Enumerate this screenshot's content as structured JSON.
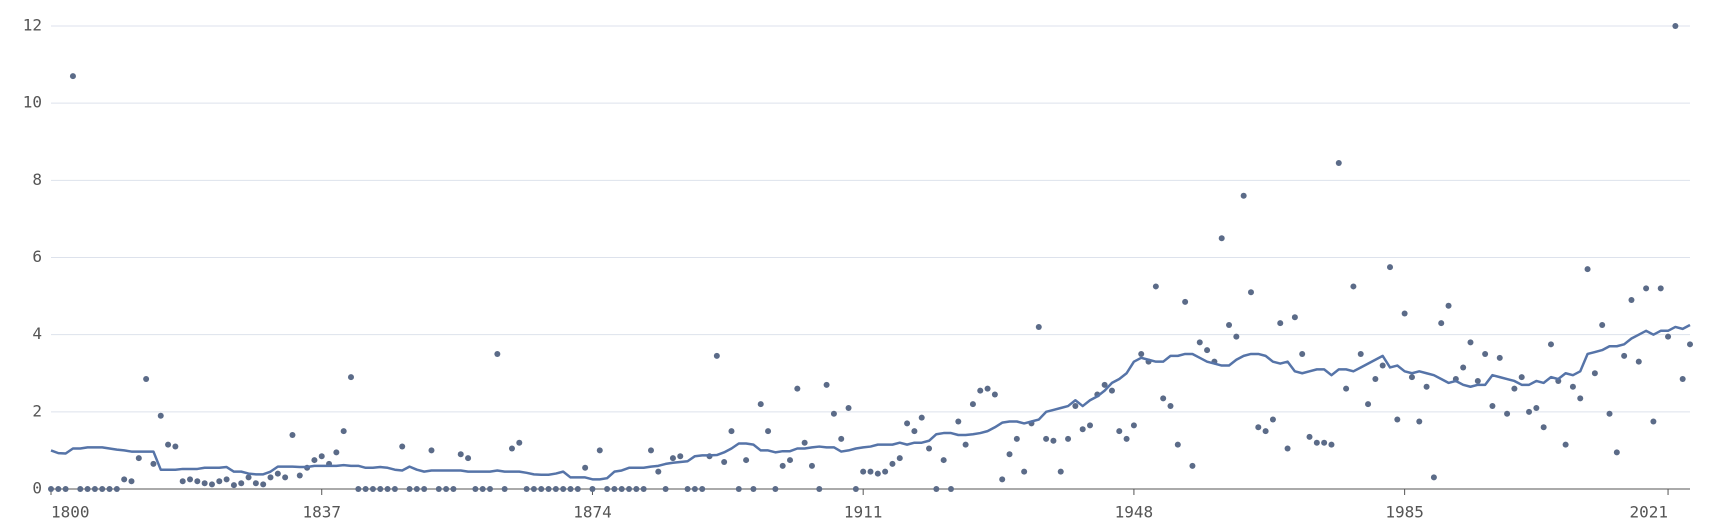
{
  "chart_data": {
    "type": "scatter",
    "x": [
      1800,
      1801,
      1802,
      1803,
      1804,
      1805,
      1806,
      1807,
      1808,
      1809,
      1810,
      1811,
      1812,
      1813,
      1814,
      1815,
      1816,
      1817,
      1818,
      1819,
      1820,
      1821,
      1822,
      1823,
      1824,
      1825,
      1826,
      1827,
      1828,
      1829,
      1830,
      1831,
      1832,
      1833,
      1834,
      1835,
      1836,
      1837,
      1838,
      1839,
      1840,
      1841,
      1842,
      1843,
      1844,
      1845,
      1846,
      1847,
      1848,
      1849,
      1850,
      1851,
      1852,
      1853,
      1854,
      1855,
      1856,
      1857,
      1858,
      1859,
      1860,
      1861,
      1862,
      1863,
      1864,
      1865,
      1866,
      1867,
      1868,
      1869,
      1870,
      1871,
      1872,
      1873,
      1874,
      1875,
      1876,
      1877,
      1878,
      1879,
      1880,
      1881,
      1882,
      1883,
      1884,
      1885,
      1886,
      1887,
      1888,
      1889,
      1890,
      1891,
      1892,
      1893,
      1894,
      1895,
      1896,
      1897,
      1898,
      1899,
      1900,
      1901,
      1902,
      1903,
      1904,
      1905,
      1906,
      1907,
      1908,
      1909,
      1910,
      1911,
      1912,
      1913,
      1914,
      1915,
      1916,
      1917,
      1918,
      1919,
      1920,
      1921,
      1922,
      1923,
      1924,
      1925,
      1926,
      1927,
      1928,
      1929,
      1930,
      1931,
      1932,
      1933,
      1934,
      1935,
      1936,
      1937,
      1938,
      1939,
      1940,
      1941,
      1942,
      1943,
      1944,
      1945,
      1946,
      1947,
      1948,
      1949,
      1950,
      1951,
      1952,
      1953,
      1954,
      1955,
      1956,
      1957,
      1958,
      1959,
      1960,
      1961,
      1962,
      1963,
      1964,
      1965,
      1966,
      1967,
      1968,
      1969,
      1970,
      1971,
      1972,
      1973,
      1974,
      1975,
      1976,
      1977,
      1978,
      1979,
      1980,
      1981,
      1982,
      1983,
      1984,
      1985,
      1986,
      1987,
      1988,
      1989,
      1990,
      1991,
      1992,
      1993,
      1994,
      1995,
      1996,
      1997,
      1998,
      1999,
      2000,
      2001,
      2002,
      2003,
      2004,
      2005,
      2006,
      2007,
      2008,
      2009,
      2010,
      2011,
      2012,
      2013,
      2014,
      2015,
      2016,
      2017,
      2018,
      2019,
      2020,
      2021,
      2022,
      2023,
      2024
    ],
    "series": [
      {
        "type": "scatter",
        "color": "#5b6b88",
        "values": [
          0,
          0,
          0,
          10.7,
          0,
          0,
          0,
          0,
          0,
          0,
          0.25,
          0.2,
          0.8,
          2.85,
          0.65,
          1.9,
          1.15,
          1.1,
          0.2,
          0.25,
          0.2,
          0.15,
          0.12,
          0.2,
          0.25,
          0.1,
          0.15,
          0.3,
          0.15,
          0.12,
          0.3,
          0.4,
          0.3,
          1.4,
          0.35,
          0.55,
          0.75,
          0.85,
          0.65,
          0.95,
          1.5,
          2.9,
          0,
          0,
          0,
          0,
          0,
          0,
          1.1,
          0,
          0,
          0,
          1.0,
          0,
          0,
          0,
          0.9,
          0.8,
          0,
          0,
          0,
          3.5,
          0,
          1.05,
          1.2,
          0,
          0,
          0,
          0,
          0,
          0,
          0,
          0,
          0.55,
          0,
          1.0,
          0,
          0,
          0,
          0,
          0,
          0,
          1.0,
          0.45,
          0,
          0.8,
          0.85,
          0,
          0,
          0,
          0.85,
          3.45,
          0.7,
          1.5,
          0,
          0.75,
          0,
          2.2,
          1.5,
          0,
          0.6,
          0.75,
          2.6,
          1.2,
          0.6,
          0,
          2.7,
          1.95,
          1.3,
          2.1,
          0,
          0.45,
          0.45,
          0.4,
          0.45,
          0.65,
          0.8,
          1.7,
          1.5,
          1.85,
          1.05,
          0,
          0.75,
          0,
          1.75,
          1.15,
          2.2,
          2.55,
          2.6,
          2.45,
          0.25,
          0.9,
          1.3,
          0.45,
          1.7,
          4.2,
          1.3,
          1.25,
          0.45,
          1.3,
          2.15,
          1.55,
          1.65,
          2.45,
          2.7,
          2.55,
          1.5,
          1.3,
          1.65,
          3.5,
          3.3,
          5.25,
          2.35,
          2.15,
          1.15,
          4.85,
          0.6,
          3.8,
          3.6,
          3.3,
          6.5,
          4.25,
          3.95,
          7.6,
          5.1,
          1.6,
          1.5,
          1.8,
          4.3,
          1.05,
          4.45,
          3.5,
          1.35,
          1.2,
          1.2,
          1.15,
          8.45,
          2.6,
          5.25,
          3.5,
          2.2,
          2.85,
          3.2,
          5.75,
          1.8,
          4.55,
          2.9,
          1.75,
          2.65,
          0.3,
          4.3,
          4.75,
          2.85,
          3.15,
          3.8,
          2.8,
          3.5,
          2.15,
          3.4,
          1.95,
          2.6,
          2.9,
          2.0,
          2.1,
          1.6,
          3.75,
          2.8,
          1.15,
          2.65,
          2.35,
          5.7,
          3.0,
          4.25,
          1.95,
          0.95,
          3.45,
          4.9,
          3.3,
          5.2,
          1.75,
          5.2,
          3.95,
          12,
          2.85,
          3.75
        ]
      },
      {
        "type": "line",
        "color": "#5674a8",
        "values": [
          1.0,
          0.93,
          0.92,
          1.05,
          1.05,
          1.08,
          1.08,
          1.08,
          1.05,
          1.02,
          1.0,
          0.97,
          0.97,
          0.97,
          0.97,
          0.5,
          0.5,
          0.5,
          0.52,
          0.52,
          0.52,
          0.55,
          0.55,
          0.55,
          0.57,
          0.45,
          0.45,
          0.4,
          0.38,
          0.38,
          0.45,
          0.58,
          0.58,
          0.58,
          0.57,
          0.57,
          0.6,
          0.6,
          0.6,
          0.6,
          0.62,
          0.6,
          0.6,
          0.55,
          0.55,
          0.57,
          0.55,
          0.5,
          0.48,
          0.58,
          0.5,
          0.45,
          0.48,
          0.48,
          0.48,
          0.48,
          0.48,
          0.45,
          0.45,
          0.45,
          0.45,
          0.48,
          0.45,
          0.45,
          0.45,
          0.42,
          0.38,
          0.37,
          0.37,
          0.4,
          0.45,
          0.3,
          0.3,
          0.3,
          0.25,
          0.25,
          0.28,
          0.45,
          0.48,
          0.55,
          0.55,
          0.55,
          0.58,
          0.6,
          0.65,
          0.68,
          0.7,
          0.72,
          0.85,
          0.87,
          0.87,
          0.88,
          0.95,
          1.05,
          1.18,
          1.18,
          1.15,
          1.0,
          1.0,
          0.95,
          0.98,
          0.98,
          1.05,
          1.05,
          1.08,
          1.1,
          1.08,
          1.08,
          0.97,
          1.0,
          1.05,
          1.08,
          1.1,
          1.15,
          1.15,
          1.15,
          1.2,
          1.15,
          1.2,
          1.2,
          1.25,
          1.42,
          1.45,
          1.45,
          1.4,
          1.4,
          1.42,
          1.45,
          1.5,
          1.6,
          1.72,
          1.75,
          1.75,
          1.7,
          1.75,
          1.8,
          2.0,
          2.05,
          2.1,
          2.15,
          2.3,
          2.15,
          2.3,
          2.4,
          2.55,
          2.75,
          2.85,
          3.0,
          3.3,
          3.4,
          3.35,
          3.3,
          3.3,
          3.45,
          3.45,
          3.5,
          3.5,
          3.4,
          3.3,
          3.25,
          3.2,
          3.2,
          3.35,
          3.45,
          3.5,
          3.5,
          3.45,
          3.3,
          3.25,
          3.3,
          3.05,
          3.0,
          3.05,
          3.1,
          3.1,
          2.95,
          3.1,
          3.1,
          3.05,
          3.15,
          3.25,
          3.35,
          3.45,
          3.15,
          3.2,
          3.05,
          3.0,
          3.05,
          3.0,
          2.95,
          2.85,
          2.75,
          2.8,
          2.7,
          2.65,
          2.7,
          2.7,
          2.95,
          2.9,
          2.85,
          2.8,
          2.7,
          2.7,
          2.8,
          2.75,
          2.9,
          2.85,
          3.0,
          2.95,
          3.05,
          3.5,
          3.55,
          3.6,
          3.7,
          3.7,
          3.75,
          3.9,
          4.0,
          4.1,
          4.0,
          4.1,
          4.1,
          4.2,
          4.15,
          4.25
        ]
      }
    ],
    "xlim": [
      1800,
      2024
    ],
    "xticks": [
      1800,
      1837,
      1874,
      1911,
      1948,
      1985,
      2021
    ],
    "ylim": [
      0,
      12
    ],
    "yticks": [
      0,
      2,
      4,
      6,
      8,
      10,
      12
    ],
    "grid": true
  }
}
